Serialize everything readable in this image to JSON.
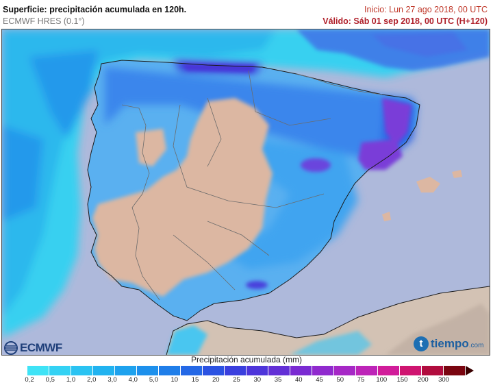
{
  "header": {
    "title": "Superficie: precipitación acumulada en 120h.",
    "subtitle": "ECMWF HRES (0.1°)",
    "init": "Inicio: Lun 27 ago 2018, 00 UTC",
    "valid": "Válido: Sáb 01 sep 2018, 00 UTC (H+120)"
  },
  "legend": {
    "title": "Precipitación acumulada (mm)",
    "ticks": [
      "0,2",
      "0,5",
      "1,0",
      "2,0",
      "3,0",
      "4,0",
      "5,0",
      "10",
      "15",
      "20",
      "25",
      "30",
      "35",
      "40",
      "45",
      "50",
      "75",
      "100",
      "150",
      "200",
      "300"
    ],
    "colors": [
      "#3fe3f6",
      "#34d2f4",
      "#2ac3f2",
      "#21b3f0",
      "#1ea2ee",
      "#1d90ec",
      "#1f7ee9",
      "#2468e6",
      "#2b52e2",
      "#3a3fde",
      "#4e35da",
      "#6330d6",
      "#7a2bd2",
      "#902ace",
      "#a628c6",
      "#bd24b8",
      "#d11c9a",
      "#cf1470",
      "#b10c3e",
      "#7a0510"
    ]
  },
  "map_colors": {
    "sea": "#aeb9db",
    "land_dry": "#dcb7a2",
    "land_distant": "#d3c2b4",
    "heavy": "#7a3ed8"
  },
  "logos": {
    "ecmwf": "ECMWF",
    "tiempo": "tiempo",
    "tiempo_domain": ".com",
    "tiempo_initial": "t"
  }
}
